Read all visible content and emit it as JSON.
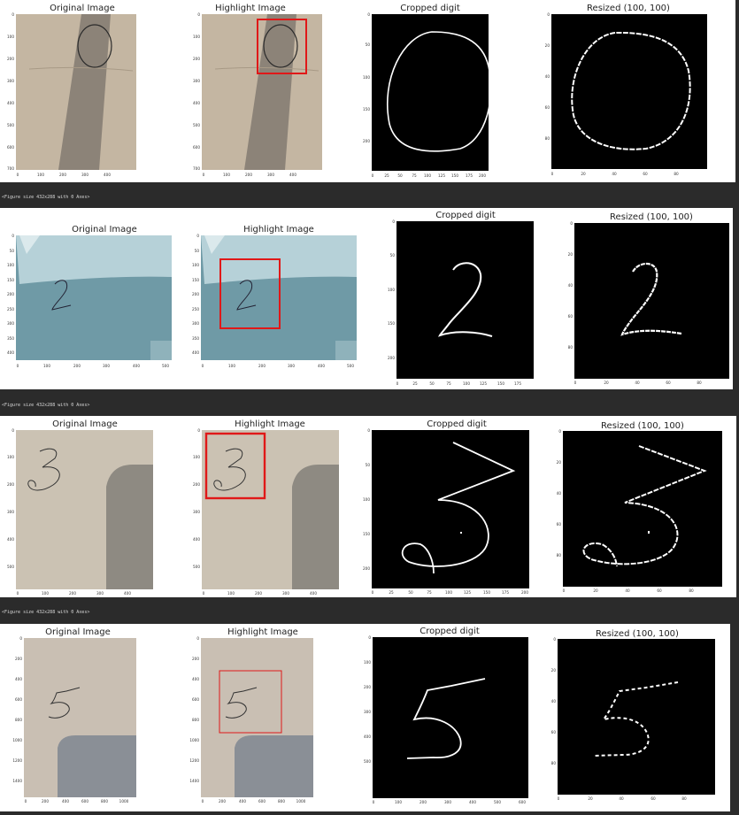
{
  "rows": [
    {
      "panels": [
        {
          "title": "Original Image",
          "yticks": [
            "0",
            "100",
            "200",
            "300",
            "400",
            "500",
            "600",
            "700"
          ],
          "xticks": [
            "0",
            "100",
            "200",
            "300",
            "400"
          ]
        },
        {
          "title": "Highlight Image",
          "yticks": [
            "0",
            "100",
            "200",
            "300",
            "400",
            "500",
            "600",
            "700"
          ],
          "xticks": [
            "0",
            "100",
            "200",
            "300",
            "400"
          ]
        },
        {
          "title": "Cropped digit",
          "yticks": [
            "0",
            "50",
            "100",
            "150",
            "200"
          ],
          "xticks": [
            "0",
            "25",
            "50",
            "75",
            "100",
            "125",
            "150",
            "175",
            "200"
          ]
        },
        {
          "title": "Resized (100, 100)",
          "yticks": [
            "0",
            "20",
            "40",
            "60",
            "80"
          ],
          "xticks": [
            "0",
            "20",
            "40",
            "60",
            "80"
          ]
        }
      ]
    },
    {
      "caption": "<Figure size 432x288 with 0 Axes>",
      "panels": [
        {
          "title": "Original Image",
          "yticks": [
            "0",
            "50",
            "100",
            "150",
            "200",
            "250",
            "300",
            "350",
            "400"
          ],
          "xticks": [
            "0",
            "100",
            "200",
            "300",
            "400",
            "500"
          ]
        },
        {
          "title": "Highlight Image",
          "yticks": [
            "0",
            "50",
            "100",
            "150",
            "200",
            "250",
            "300",
            "350",
            "400"
          ],
          "xticks": [
            "0",
            "100",
            "200",
            "300",
            "400",
            "500"
          ]
        },
        {
          "title": "Cropped digit",
          "yticks": [
            "0",
            "50",
            "100",
            "150",
            "200"
          ],
          "xticks": [
            "0",
            "25",
            "50",
            "75",
            "100",
            "125",
            "150",
            "175"
          ]
        },
        {
          "title": "Resized (100, 100)",
          "yticks": [
            "0",
            "20",
            "40",
            "60",
            "80"
          ],
          "xticks": [
            "0",
            "20",
            "40",
            "60",
            "80"
          ]
        }
      ]
    },
    {
      "caption": "<Figure size 432x288 with 0 Axes>",
      "panels": [
        {
          "title": "Original Image",
          "yticks": [
            "0",
            "100",
            "200",
            "300",
            "400",
            "500"
          ],
          "xticks": [
            "0",
            "100",
            "200",
            "300",
            "400"
          ]
        },
        {
          "title": "Highlight Image",
          "yticks": [
            "0",
            "100",
            "200",
            "300",
            "400",
            "500"
          ],
          "xticks": [
            "0",
            "100",
            "200",
            "300",
            "400"
          ]
        },
        {
          "title": "Cropped digit",
          "yticks": [
            "0",
            "50",
            "100",
            "150",
            "200"
          ],
          "xticks": [
            "0",
            "25",
            "50",
            "75",
            "100",
            "125",
            "150",
            "175",
            "200"
          ]
        },
        {
          "title": "Resized (100, 100)",
          "yticks": [
            "0",
            "20",
            "40",
            "60",
            "80"
          ],
          "xticks": [
            "0",
            "20",
            "40",
            "60",
            "80"
          ]
        }
      ]
    },
    {
      "caption": "<Figure size 432x288 with 0 Axes>",
      "panels": [
        {
          "title": "Original Image",
          "yticks": [
            "0",
            "200",
            "400",
            "600",
            "800",
            "1000",
            "1200",
            "1400"
          ],
          "xticks": [
            "0",
            "200",
            "400",
            "600",
            "800",
            "1000"
          ]
        },
        {
          "title": "Highlight Image",
          "yticks": [
            "0",
            "200",
            "400",
            "600",
            "800",
            "1000",
            "1200",
            "1400"
          ],
          "xticks": [
            "0",
            "200",
            "400",
            "600",
            "800",
            "1000"
          ]
        },
        {
          "title": "Cropped digit",
          "yticks": [
            "0",
            "100",
            "200",
            "300",
            "400",
            "500"
          ],
          "xticks": [
            "0",
            "100",
            "200",
            "300",
            "400",
            "500",
            "600"
          ]
        },
        {
          "title": "Resized (100, 100)",
          "yticks": [
            "0",
            "20",
            "40",
            "60",
            "80"
          ],
          "xticks": [
            "0",
            "20",
            "40",
            "60",
            "80"
          ]
        }
      ]
    }
  ]
}
